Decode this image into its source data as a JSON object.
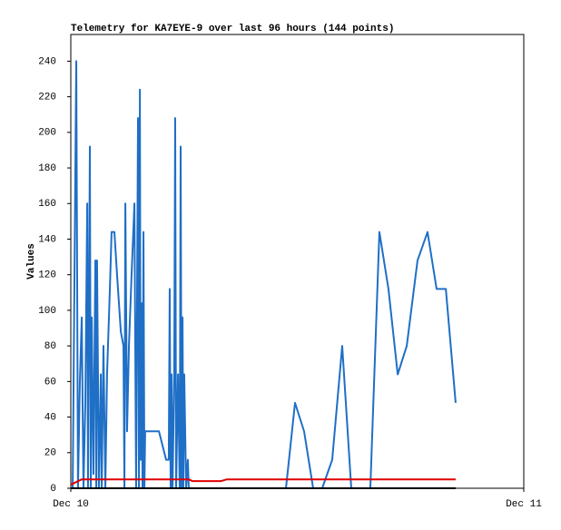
{
  "chart_data": {
    "type": "line",
    "title": "Telemetry for KA7EYE-9 over last 96 hours (144 points)",
    "ylabel": "Values",
    "xlim": [
      0,
      24
    ],
    "xticks": [
      {
        "value": 0,
        "label": "Dec 10"
      },
      {
        "value": 24,
        "label": "Dec 11"
      }
    ],
    "ylim": [
      0,
      255
    ],
    "yticks": [
      0,
      20,
      40,
      60,
      80,
      100,
      120,
      140,
      160,
      180,
      200,
      220,
      240
    ],
    "series": [
      {
        "color": "#1f6fc6",
        "x": [
          0.1,
          0.29,
          0.38,
          0.48,
          0.58,
          0.67,
          0.77,
          0.87,
          0.91,
          1.01,
          1.06,
          1.11,
          1.2,
          1.3,
          1.35,
          1.39,
          1.49,
          1.59,
          1.64,
          1.73,
          1.83,
          1.92,
          2.07,
          2.16,
          2.31,
          2.45,
          2.65,
          2.79,
          2.84,
          2.89,
          2.98,
          3.08,
          3.22,
          3.37,
          3.46,
          3.56,
          3.61,
          3.66,
          3.7,
          3.75,
          3.8,
          3.85,
          3.9,
          3.94,
          4.67,
          5.05,
          5.19,
          5.24,
          5.29,
          5.34,
          5.39,
          5.48,
          5.53,
          5.58,
          5.68,
          5.77,
          5.82,
          5.87,
          5.92,
          5.96,
          6.01,
          6.11,
          6.2,
          6.25,
          11.4,
          11.88,
          12.36,
          12.84,
          13.32,
          13.85,
          14.38,
          14.86,
          15.87,
          16.35,
          16.83,
          17.32,
          17.8,
          18.37,
          18.9,
          19.38,
          19.87,
          20.39
        ],
        "values": [
          0,
          240,
          0,
          60,
          96,
          0,
          48,
          160,
          0,
          192,
          0,
          96,
          8,
          128,
          0,
          128,
          0,
          64,
          0,
          80,
          0,
          64,
          112,
          144,
          144,
          120,
          88,
          80,
          0,
          160,
          32,
          80,
          120,
          160,
          0,
          208,
          0,
          224,
          16,
          104,
          0,
          144,
          0,
          32,
          32,
          16,
          16,
          112,
          0,
          64,
          0,
          64,
          208,
          0,
          64,
          0,
          192,
          0,
          96,
          0,
          64,
          0,
          16,
          0,
          0,
          48,
          32,
          0,
          0,
          16,
          80,
          0,
          0,
          144,
          112,
          64,
          80,
          128,
          144,
          112,
          112,
          48
        ]
      },
      {
        "color": "#e00000",
        "x": [
          0,
          0.58,
          6.25,
          6.45,
          7.94,
          8.27,
          20.39
        ],
        "values": [
          2,
          5,
          5,
          4,
          4,
          5,
          5
        ]
      },
      {
        "color": "#000000",
        "x": [
          0,
          20.39
        ],
        "values": [
          0,
          0
        ]
      }
    ]
  }
}
